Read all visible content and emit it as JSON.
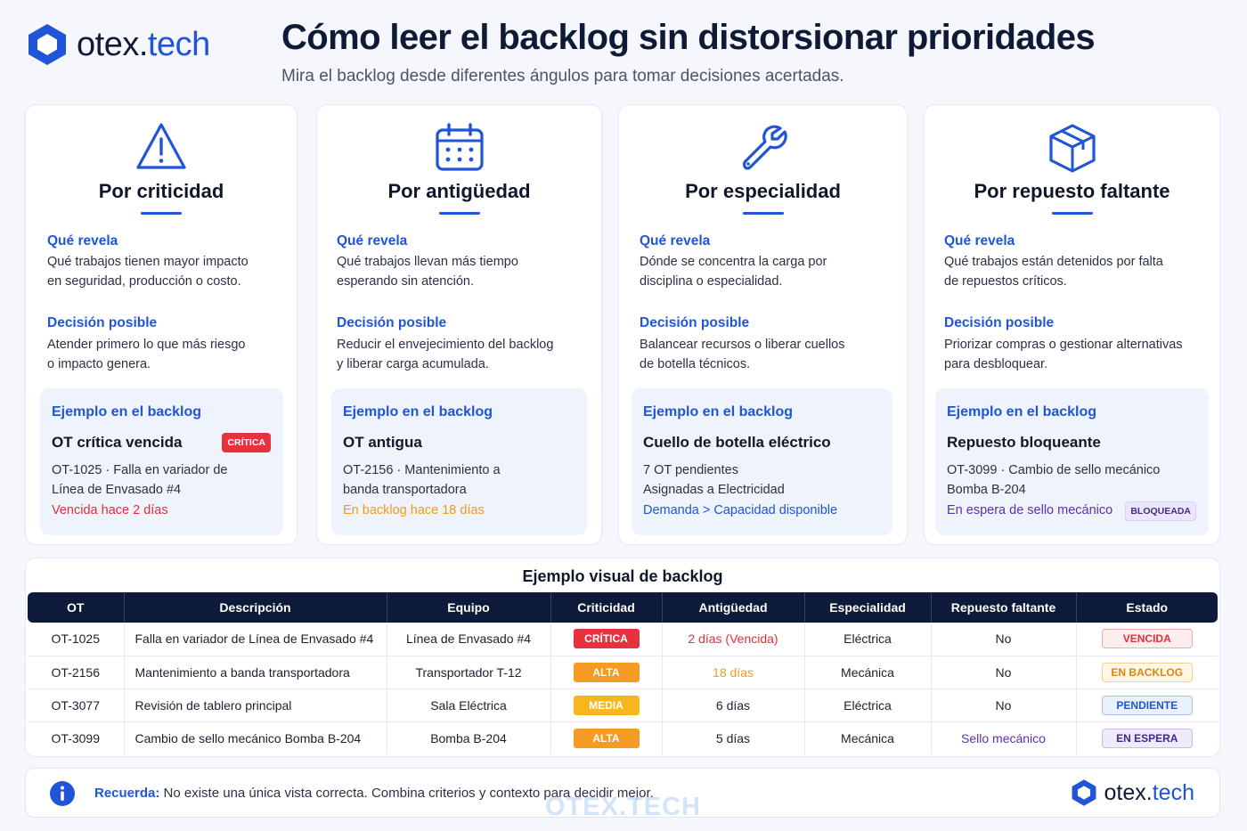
{
  "brand": {
    "name_main": "otex.",
    "name_accent": "tech"
  },
  "header": {
    "title": "Cómo leer el backlog sin distorsionar prioridades",
    "subtitle": "Mira el backlog desde diferentes ángulos para tomar decisiones acertadas."
  },
  "cards": [
    {
      "icon": "warning-triangle-icon",
      "title": "Por criticidad",
      "reveals_label": "Qué revela",
      "reveals_text_1": "Qué trabajos tienen mayor impacto",
      "reveals_text_2": "en seguridad, producción o costo.",
      "decision_label": "Decisión posible",
      "decision_text_1": "Atender primero lo que más riesgo",
      "decision_text_2": "o impacto genera.",
      "example_label": "Ejemplo en el backlog",
      "example_title": "OT crítica vencida",
      "example_tag": "CRÍTICA",
      "example_line_1": "OT-1025 · Falla en variador de",
      "example_line_2": "Línea de Envasado #4",
      "example_note": "Vencida hace 2 días",
      "note_color": "#e0303b"
    },
    {
      "icon": "calendar-icon",
      "title": "Por antigüedad",
      "reveals_label": "Qué revela",
      "reveals_text_1": "Qué trabajos llevan más tiempo",
      "reveals_text_2": "esperando sin atención.",
      "decision_label": "Decisión posible",
      "decision_text_1": "Reducir el envejecimiento del backlog",
      "decision_text_2": "y liberar carga acumulada.",
      "example_label": "Ejemplo en el backlog",
      "example_title": "OT antigua",
      "example_line_1": "OT-2156 · Mantenimiento a",
      "example_line_2": "banda transportadora",
      "example_note": "En backlog hace 18 días",
      "note_color": "#f39a1c"
    },
    {
      "icon": "wrench-icon",
      "title": "Por especialidad",
      "reveals_label": "Qué revela",
      "reveals_text_1": "Dónde se concentra la carga por",
      "reveals_text_2": "disciplina o especialidad.",
      "decision_label": "Decisión posible",
      "decision_text_1": "Balancear recursos o liberar cuellos",
      "decision_text_2": "de botella técnicos.",
      "example_label": "Ejemplo en el backlog",
      "example_title": "Cuello de botella eléctrico",
      "example_line_1": "7 OT pendientes",
      "example_line_2": "Asignadas a Electricidad",
      "example_note": "Demanda > Capacidad disponible",
      "note_color": "#1f55d6"
    },
    {
      "icon": "box-icon",
      "title": "Por repuesto faltante",
      "reveals_label": "Qué revela",
      "reveals_text_1": "Qué trabajos están detenidos por falta",
      "reveals_text_2": "de repuestos críticos.",
      "decision_label": "Decisión posible",
      "decision_text_1": "Priorizar compras o gestionar alternativas",
      "decision_text_2": "para desbloquear.",
      "example_label": "Ejemplo en el backlog",
      "example_title": "Repuesto bloqueante",
      "example_tag": "BLOQUEADA",
      "example_line_1": "OT-3099 · Cambio de sello mecánico",
      "example_line_2": "Bomba B-204",
      "example_note": "En espera de sello mecánico",
      "note_color": "#5b2fb8"
    }
  ],
  "table": {
    "title": "Ejemplo visual de backlog",
    "headers": {
      "ot": "OT",
      "desc": "Descripción",
      "equipo": "Equipo",
      "criticidad": "Criticidad",
      "antiguedad": "Antigüedad",
      "especialidad": "Especialidad",
      "repuesto": "Repuesto faltante",
      "estado": "Estado"
    },
    "rows": [
      {
        "ot": "OT-1025",
        "desc": "Falla en variador de Línea de Envasado #4",
        "equipo": "Línea de Envasado #4",
        "criticidad": "CRÍTICA",
        "antiguedad": "2 días (Vencida)",
        "especialidad": "Eléctrica",
        "repuesto": "No",
        "estado": "VENCIDA"
      },
      {
        "ot": "OT-2156",
        "desc": "Mantenimiento a banda transportadora",
        "equipo": "Transportador T-12",
        "criticidad": "ALTA",
        "antiguedad": "18 días",
        "especialidad": "Mecánica",
        "repuesto": "No",
        "estado": "EN BACKLOG"
      },
      {
        "ot": "OT-3077",
        "desc": "Revisión de tablero principal",
        "equipo": "Sala Eléctrica",
        "criticidad": "MEDIA",
        "antiguedad": "6 días",
        "especialidad": "Eléctrica",
        "repuesto": "No",
        "estado": "PENDIENTE"
      },
      {
        "ot": "OT-3099",
        "desc": "Cambio de sello mecánico Bomba B-204",
        "equipo": "Bomba B-204",
        "criticidad": "ALTA",
        "antiguedad": "5 días",
        "especialidad": "Mecánica",
        "repuesto": "Sello mecánico",
        "estado": "EN ESPERA"
      }
    ]
  },
  "colors": {
    "accent": "#1f55d6",
    "critica": "#e5323e",
    "alta": "#f59a23",
    "media": "#f7b51e",
    "vencida": "#e0303b",
    "backlog_orange": "#f39a1c",
    "espera_purple": "#5b2fb8",
    "header_navy": "#0e1a3a"
  },
  "footer": {
    "label": "Recuerda:",
    "text": " No existe una única vista correcta. Combina criterios y contexto para decidir mejor.",
    "icon": "info-icon",
    "logo_main": "otex.",
    "logo_accent": "tech"
  },
  "watermark": "OTEX.TECH"
}
